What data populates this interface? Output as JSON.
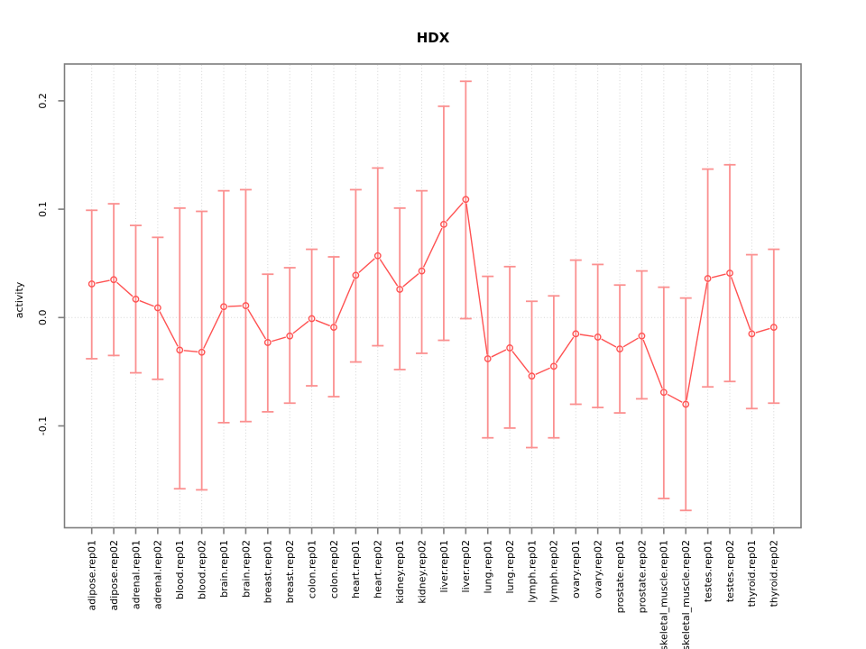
{
  "figure": {
    "title": "HDX",
    "y_axis_label": "activity"
  },
  "chart_data": {
    "type": "line",
    "subtype": "points-with-error-bars",
    "title": "HDX",
    "xlabel": "",
    "ylabel": "activity",
    "categories": [
      "adipose.rep01",
      "adipose.rep02",
      "adrenal.rep01",
      "adrenal.rep02",
      "blood.rep01",
      "blood.rep02",
      "brain.rep01",
      "brain.rep02",
      "breast.rep01",
      "breast.rep02",
      "colon.rep01",
      "colon.rep02",
      "heart.rep01",
      "heart.rep02",
      "kidney.rep01",
      "kidney.rep02",
      "liver.rep01",
      "liver.rep02",
      "lung.rep01",
      "lung.rep02",
      "lymph.rep01",
      "lymph.rep02",
      "ovary.rep01",
      "ovary.rep02",
      "prostate.rep01",
      "prostate.rep02",
      "skeletal_muscle.rep01",
      "skeletal_muscle.rep02",
      "testes.rep01",
      "testes.rep02",
      "thyroid.rep01",
      "thyroid.rep02"
    ],
    "series": [
      {
        "name": "HDX activity",
        "values": [
          0.031,
          0.035,
          0.017,
          0.009,
          -0.03,
          -0.032,
          0.01,
          0.011,
          -0.023,
          -0.017,
          -0.001,
          -0.009,
          0.039,
          0.057,
          0.026,
          0.043,
          0.086,
          0.109,
          -0.038,
          -0.028,
          -0.054,
          -0.045,
          -0.015,
          -0.018,
          -0.029,
          -0.017,
          -0.069,
          -0.08,
          0.036,
          0.041,
          -0.015,
          -0.009
        ],
        "error_low": [
          -0.038,
          -0.035,
          -0.051,
          -0.057,
          -0.158,
          -0.159,
          -0.097,
          -0.096,
          -0.087,
          -0.079,
          -0.063,
          -0.073,
          -0.041,
          -0.026,
          -0.048,
          -0.033,
          -0.021,
          -0.001,
          -0.111,
          -0.102,
          -0.12,
          -0.111,
          -0.08,
          -0.083,
          -0.088,
          -0.075,
          -0.167,
          -0.178,
          -0.064,
          -0.059,
          -0.084,
          -0.079
        ],
        "error_high": [
          0.099,
          0.105,
          0.085,
          0.074,
          0.101,
          0.098,
          0.117,
          0.118,
          0.04,
          0.046,
          0.063,
          0.056,
          0.118,
          0.138,
          0.101,
          0.117,
          0.195,
          0.218,
          0.038,
          0.047,
          0.015,
          0.02,
          0.053,
          0.049,
          0.03,
          0.043,
          0.028,
          0.018,
          0.137,
          0.141,
          0.058,
          0.063
        ]
      }
    ],
    "yticks": {
      "values": [
        -0.1,
        0.0,
        0.1,
        0.2
      ],
      "labels": [
        "-0.1",
        "0.0",
        "0.1",
        "0.2"
      ]
    },
    "ylim": [
      -0.194,
      0.234
    ],
    "reference_line_y": 0,
    "grid": {
      "vertical_dotted_per_category": true,
      "horizontal_dotted_at_zero": true
    },
    "x_tick_labels_rotated_90": true,
    "legend": "none",
    "colors": {
      "point_line": "#ff5252",
      "error_bar": "#fb9090",
      "grid_line": "#d4d4d4",
      "axis_box": "#7d7d7d",
      "text": "#000000",
      "background": "#ffffff"
    }
  }
}
